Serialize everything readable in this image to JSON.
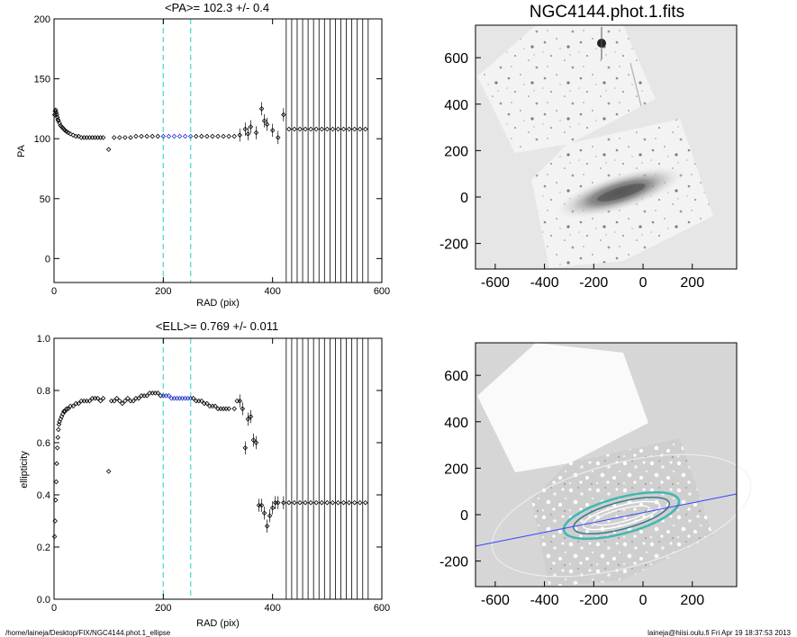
{
  "footer": {
    "left": "/home/laineja/Desktop/FIX/NGC4144.phot.1_ellipse",
    "right": "laineja@hiisi.oulu.fi  Fri Apr 19 18:37:53 2013"
  },
  "colors": {
    "marker": "#000000",
    "fit_marker": "#2233cc",
    "range_line": "#66e0d0",
    "pa_line": "#3344ff",
    "contour": "#40b8b0"
  },
  "chart_data": [
    {
      "type": "scatter",
      "title": "<PA>= 102.3 +/-   0.4",
      "xlabel": "RAD (pix)",
      "ylabel": "PA",
      "xlim": [
        0,
        600
      ],
      "ylim": [
        -20,
        200
      ],
      "xticks": [
        0,
        200,
        400,
        600
      ],
      "yticks": [
        0,
        50,
        100,
        150,
        200
      ],
      "fit_range": [
        200,
        250
      ],
      "vertical_lines": [
        425,
        435,
        445,
        455,
        465,
        475,
        485,
        495,
        505,
        515,
        525,
        535,
        545,
        555,
        565,
        575
      ],
      "points": [
        [
          1,
          120
        ],
        [
          2,
          123
        ],
        [
          3,
          124
        ],
        [
          4,
          122
        ],
        [
          5,
          120
        ],
        [
          6,
          118
        ],
        [
          7,
          116
        ],
        [
          8,
          115
        ],
        [
          10,
          113
        ],
        [
          12,
          111
        ],
        [
          14,
          110
        ],
        [
          16,
          109
        ],
        [
          18,
          108
        ],
        [
          20,
          107
        ],
        [
          23,
          106
        ],
        [
          26,
          105
        ],
        [
          30,
          104
        ],
        [
          35,
          103
        ],
        [
          40,
          102
        ],
        [
          45,
          102
        ],
        [
          50,
          101
        ],
        [
          55,
          101
        ],
        [
          60,
          101
        ],
        [
          65,
          101
        ],
        [
          70,
          101
        ],
        [
          75,
          101
        ],
        [
          80,
          101
        ],
        [
          85,
          101
        ],
        [
          90,
          101
        ],
        [
          100,
          91
        ],
        [
          110,
          101
        ],
        [
          120,
          101
        ],
        [
          130,
          101
        ],
        [
          140,
          101
        ],
        [
          150,
          102
        ],
        [
          160,
          102
        ],
        [
          170,
          102
        ],
        [
          180,
          102
        ],
        [
          190,
          102
        ],
        [
          200,
          102
        ],
        [
          210,
          102
        ],
        [
          220,
          102
        ],
        [
          230,
          102
        ],
        [
          240,
          102
        ],
        [
          250,
          102
        ],
        [
          260,
          102
        ],
        [
          270,
          102
        ],
        [
          280,
          102
        ],
        [
          290,
          102
        ],
        [
          300,
          102
        ],
        [
          310,
          102
        ],
        [
          320,
          102
        ],
        [
          330,
          102
        ],
        [
          340,
          103
        ],
        [
          350,
          108
        ],
        [
          355,
          104
        ],
        [
          360,
          110
        ],
        [
          370,
          105
        ],
        [
          380,
          125
        ],
        [
          385,
          115
        ],
        [
          390,
          112
        ],
        [
          400,
          107
        ],
        [
          410,
          101
        ],
        [
          420,
          120
        ],
        [
          430,
          108
        ],
        [
          440,
          108
        ],
        [
          450,
          108
        ],
        [
          460,
          108
        ],
        [
          470,
          108
        ],
        [
          480,
          108
        ],
        [
          490,
          108
        ],
        [
          500,
          108
        ],
        [
          510,
          108
        ],
        [
          520,
          108
        ],
        [
          530,
          108
        ],
        [
          540,
          108
        ],
        [
          550,
          108
        ],
        [
          560,
          108
        ],
        [
          570,
          108
        ]
      ]
    },
    {
      "type": "scatter",
      "title": "<ELL>= 0.769 +/-  0.011",
      "xlabel": "RAD (pix)",
      "ylabel": "ellipticity",
      "xlim": [
        0,
        600
      ],
      "ylim": [
        0,
        1
      ],
      "xticks": [
        0,
        200,
        400,
        600
      ],
      "yticks": [
        0.0,
        0.2,
        0.4,
        0.6,
        0.8,
        1.0
      ],
      "fit_range": [
        200,
        250
      ],
      "vertical_lines": [
        425,
        435,
        445,
        455,
        465,
        475,
        485,
        495,
        505,
        515,
        525,
        535,
        545,
        555,
        565,
        575
      ],
      "points": [
        [
          1,
          0.24
        ],
        [
          2,
          0.3
        ],
        [
          3,
          0.38
        ],
        [
          4,
          0.45
        ],
        [
          5,
          0.52
        ],
        [
          6,
          0.58
        ],
        [
          7,
          0.62
        ],
        [
          8,
          0.65
        ],
        [
          9,
          0.67
        ],
        [
          10,
          0.68
        ],
        [
          12,
          0.69
        ],
        [
          14,
          0.7
        ],
        [
          16,
          0.71
        ],
        [
          18,
          0.72
        ],
        [
          20,
          0.72
        ],
        [
          23,
          0.73
        ],
        [
          26,
          0.73
        ],
        [
          30,
          0.74
        ],
        [
          35,
          0.74
        ],
        [
          40,
          0.75
        ],
        [
          45,
          0.75
        ],
        [
          50,
          0.76
        ],
        [
          55,
          0.76
        ],
        [
          60,
          0.76
        ],
        [
          65,
          0.76
        ],
        [
          70,
          0.77
        ],
        [
          75,
          0.77
        ],
        [
          80,
          0.77
        ],
        [
          85,
          0.76
        ],
        [
          90,
          0.77
        ],
        [
          100,
          0.49
        ],
        [
          105,
          0.76
        ],
        [
          110,
          0.76
        ],
        [
          115,
          0.77
        ],
        [
          120,
          0.76
        ],
        [
          125,
          0.75
        ],
        [
          130,
          0.76
        ],
        [
          135,
          0.77
        ],
        [
          140,
          0.76
        ],
        [
          145,
          0.76
        ],
        [
          150,
          0.77
        ],
        [
          155,
          0.77
        ],
        [
          160,
          0.78
        ],
        [
          165,
          0.78
        ],
        [
          170,
          0.78
        ],
        [
          175,
          0.79
        ],
        [
          180,
          0.79
        ],
        [
          185,
          0.79
        ],
        [
          190,
          0.79
        ],
        [
          195,
          0.78
        ],
        [
          200,
          0.78
        ],
        [
          205,
          0.78
        ],
        [
          210,
          0.78
        ],
        [
          215,
          0.77
        ],
        [
          220,
          0.77
        ],
        [
          225,
          0.77
        ],
        [
          230,
          0.77
        ],
        [
          235,
          0.77
        ],
        [
          240,
          0.77
        ],
        [
          245,
          0.77
        ],
        [
          250,
          0.77
        ],
        [
          255,
          0.77
        ],
        [
          260,
          0.76
        ],
        [
          265,
          0.76
        ],
        [
          270,
          0.76
        ],
        [
          275,
          0.75
        ],
        [
          280,
          0.75
        ],
        [
          285,
          0.74
        ],
        [
          290,
          0.74
        ],
        [
          295,
          0.74
        ],
        [
          300,
          0.73
        ],
        [
          305,
          0.73
        ],
        [
          310,
          0.73
        ],
        [
          315,
          0.73
        ],
        [
          320,
          0.73
        ],
        [
          330,
          0.73
        ],
        [
          335,
          0.76
        ],
        [
          340,
          0.76
        ],
        [
          345,
          0.73
        ],
        [
          350,
          0.58
        ],
        [
          355,
          0.69
        ],
        [
          360,
          0.7
        ],
        [
          365,
          0.61
        ],
        [
          370,
          0.6
        ],
        [
          375,
          0.36
        ],
        [
          380,
          0.36
        ],
        [
          385,
          0.33
        ],
        [
          390,
          0.28
        ],
        [
          395,
          0.32
        ],
        [
          400,
          0.35
        ],
        [
          405,
          0.37
        ],
        [
          410,
          0.37
        ],
        [
          420,
          0.37
        ],
        [
          430,
          0.37
        ],
        [
          440,
          0.37
        ],
        [
          450,
          0.37
        ],
        [
          460,
          0.37
        ],
        [
          470,
          0.37
        ],
        [
          480,
          0.37
        ],
        [
          490,
          0.37
        ],
        [
          500,
          0.37
        ],
        [
          510,
          0.37
        ],
        [
          520,
          0.37
        ],
        [
          530,
          0.37
        ],
        [
          540,
          0.37
        ],
        [
          550,
          0.37
        ],
        [
          560,
          0.37
        ],
        [
          570,
          0.37
        ]
      ]
    },
    {
      "type": "image",
      "title": "NGC4144.phot.1.fits",
      "xticks": [
        -600,
        -400,
        -200,
        0,
        200
      ],
      "yticks": [
        -200,
        0,
        200,
        400,
        600
      ],
      "xlim": [
        -680,
        380
      ],
      "ylim": [
        -310,
        740
      ]
    },
    {
      "type": "image",
      "title": "",
      "xticks": [
        -600,
        -400,
        -200,
        0,
        200
      ],
      "yticks": [
        -200,
        0,
        200,
        400,
        600
      ],
      "xlim": [
        -680,
        380
      ],
      "ylim": [
        -310,
        740
      ]
    }
  ]
}
